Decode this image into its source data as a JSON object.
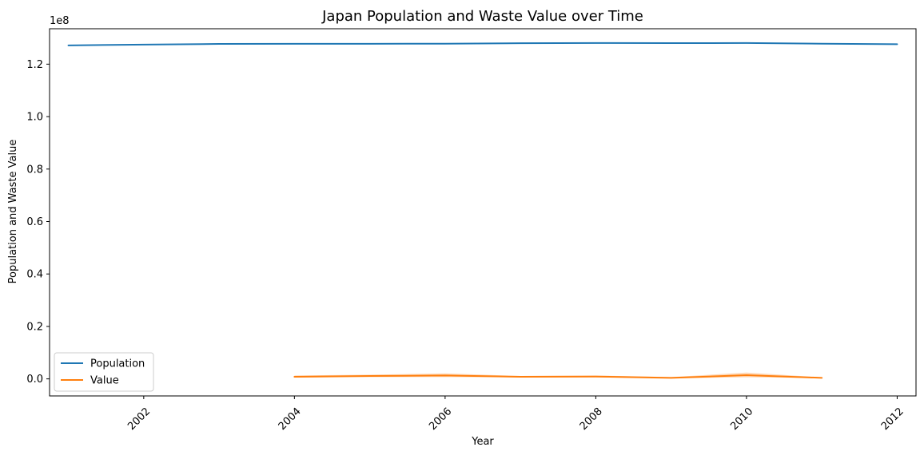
{
  "chart_data": {
    "type": "line",
    "title": "Japan Population and Waste Value over Time",
    "xlabel": "Year",
    "ylabel": "Population and Waste Value",
    "y_offset_label": "1e8",
    "xlim": [
      2000.75,
      2012.25
    ],
    "ylim": [
      -6500000,
      133500000
    ],
    "x_ticks": [
      2002,
      2004,
      2006,
      2008,
      2010,
      2012
    ],
    "y_ticks": [
      0,
      20000000,
      40000000,
      60000000,
      80000000,
      100000000,
      120000000
    ],
    "y_tick_labels": [
      "0.0",
      "0.2",
      "0.4",
      "0.6",
      "0.8",
      "1.0",
      "1.2"
    ],
    "x_tick_rotation_deg": 45,
    "legend_position": "lower-left",
    "grid": false,
    "series": [
      {
        "name": "Population",
        "color": "#1f77b4",
        "x": [
          2001,
          2002,
          2003,
          2004,
          2005,
          2006,
          2007,
          2008,
          2009,
          2010,
          2011,
          2012
        ],
        "y": [
          127150000,
          127450000,
          127700000,
          127750000,
          127770000,
          127800000,
          127990000,
          128050000,
          128030000,
          128050000,
          127800000,
          127600000
        ]
      },
      {
        "name": "Value",
        "color": "#ff7f0e",
        "x": [
          2004,
          2005,
          2006,
          2007,
          2008,
          2009,
          2010,
          2011
        ],
        "y": [
          800000,
          1100000,
          1300000,
          800000,
          900000,
          400000,
          1400000,
          400000
        ],
        "ci_lower": [
          500000,
          700000,
          700000,
          600000,
          600000,
          200000,
          600000,
          300000
        ],
        "ci_upper": [
          1300000,
          1600000,
          2100000,
          1100000,
          1300000,
          700000,
          2400000,
          600000
        ]
      }
    ]
  }
}
